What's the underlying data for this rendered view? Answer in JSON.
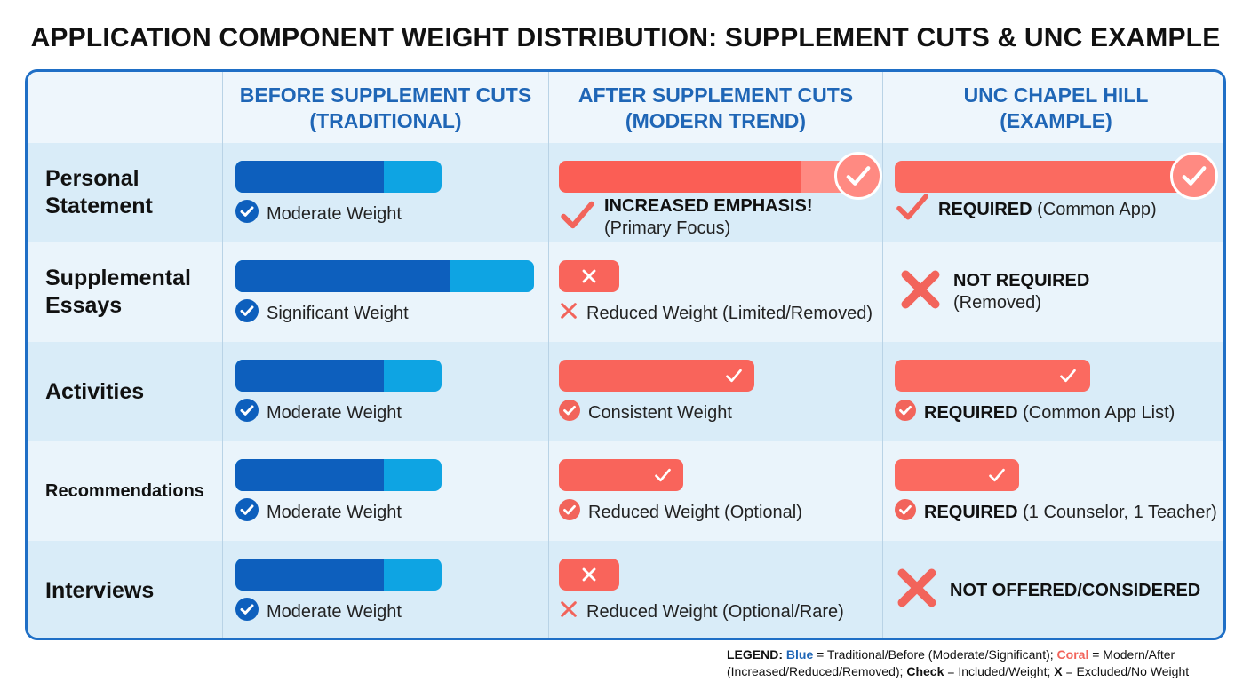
{
  "title": "APPLICATION COMPONENT WEIGHT DISTRIBUTION: SUPPLEMENT CUTS & UNC EXAMPLE",
  "columns": [
    {
      "line1": "BEFORE SUPPLEMENT CUTS",
      "line2": "(TRADITIONAL)"
    },
    {
      "line1": "AFTER SUPPLEMENT CUTS",
      "line2": "(MODERN TREND)"
    },
    {
      "line1": "UNC CHAPEL HILL",
      "line2": "(EXAMPLE)"
    }
  ],
  "rows": [
    {
      "line1": "Personal",
      "line2": "Statement"
    },
    {
      "line1": "Supplemental",
      "line2": "Essays"
    },
    {
      "line1": "Activities",
      "line2": ""
    },
    {
      "line1": "Recommendations",
      "line2": ""
    },
    {
      "line1": "Interviews",
      "line2": ""
    }
  ],
  "notes": {
    "before": [
      "Moderate Weight",
      "Significant Weight",
      "Moderate Weight",
      "Moderate Weight",
      "Moderate Weight"
    ],
    "after": [
      {
        "bold": "INCREASED EMPHASIS!",
        "rest": "(Primary Focus)"
      },
      {
        "bold": "",
        "rest": "Reduced Weight (Limited/Removed)"
      },
      {
        "bold": "",
        "rest": "Consistent Weight"
      },
      {
        "bold": "",
        "rest": "Reduced Weight (Optional)"
      },
      {
        "bold": "",
        "rest": "Reduced Weight (Optional/Rare)"
      }
    ],
    "unc": [
      {
        "bold": "REQUIRED",
        "rest": " (Common App)"
      },
      {
        "bold": "NOT REQUIRED",
        "rest": "(Removed)"
      },
      {
        "bold": "REQUIRED",
        "rest": " (Common App List)"
      },
      {
        "bold": "REQUIRED",
        "rest": " (1 Counselor, 1 Teacher)"
      },
      {
        "bold": "NOT OFFERED/CONSIDERED",
        "rest": ""
      }
    ]
  },
  "legend": {
    "label": "LEGEND:",
    "blue": "Blue",
    "blue_desc": " = Traditional/Before (Moderate/Significant); ",
    "coral": "Coral",
    "coral_desc": " = Modern/After (Increased/Reduced/Removed); ",
    "check": "Check",
    "check_desc": " = Included/Weight; ",
    "x": "X",
    "x_desc": " = Excluded/No Weight"
  },
  "colors": {
    "blue_dark": "#0d5fbd",
    "blue_light": "#0ea4e3",
    "coral": "#fb5e55",
    "coral_light": "#ff8a82",
    "frame": "#1f6fc6"
  },
  "chart_data": {
    "type": "table",
    "title": "APPLICATION COMPONENT WEIGHT DISTRIBUTION: SUPPLEMENT CUTS & UNC EXAMPLE",
    "categories": [
      "Personal Statement",
      "Supplemental Essays",
      "Activities",
      "Recommendations",
      "Interviews"
    ],
    "series": [
      {
        "name": "BEFORE SUPPLEMENT CUTS (TRADITIONAL)",
        "color": "#0d5fbd",
        "values": [
          0.58,
          0.84,
          0.58,
          0.58,
          0.58
        ],
        "status": [
          "check",
          "check",
          "check",
          "check",
          "check"
        ]
      },
      {
        "name": "AFTER SUPPLEMENT CUTS (MODERN TREND)",
        "color": "#fb5e55",
        "values": [
          0.85,
          0.17,
          0.55,
          0.35,
          0.17
        ],
        "status": [
          "check",
          "x",
          "check",
          "check",
          "x"
        ]
      },
      {
        "name": "UNC CHAPEL HILL (EXAMPLE)",
        "color": "#fb5e55",
        "values": [
          0.85,
          0,
          0.55,
          0.35,
          0
        ],
        "status": [
          "check",
          "x",
          "check",
          "check",
          "x"
        ]
      }
    ],
    "legend": "bottom-right",
    "grid": false
  }
}
